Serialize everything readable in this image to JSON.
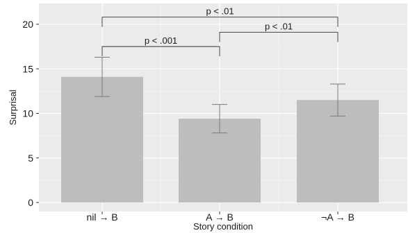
{
  "chart_data": {
    "type": "bar",
    "title": "",
    "xlabel": "Story condition",
    "ylabel": "Surprisal",
    "categories": [
      "nil → B",
      "A → B",
      "¬A → B"
    ],
    "values": [
      14.1,
      9.4,
      11.5
    ],
    "error_bars": [
      {
        "low": 11.9,
        "high": 16.3
      },
      {
        "low": 7.8,
        "high": 11.0
      },
      {
        "low": 9.7,
        "high": 13.3
      }
    ],
    "yticks": [
      0,
      5,
      10,
      15,
      20
    ],
    "ytick_labels": [
      "0",
      "5",
      "10",
      "15",
      "20"
    ],
    "ylim": [
      -0.6,
      21.8
    ],
    "grid": true,
    "colors": {
      "bar": "#bdbdbd",
      "panel": "#ebebeb",
      "grid_major": "#ffffff",
      "grid_minor": "#f4f4f4",
      "error_bar": "#7a7a7a",
      "bracket": "#333333"
    },
    "significance": [
      {
        "from": 0,
        "to": 1,
        "y": 17.5,
        "label": "p < .001"
      },
      {
        "from": 1,
        "to": 2,
        "y": 19.1,
        "label": "p < .01"
      },
      {
        "from": 0,
        "to": 2,
        "y": 20.8,
        "label": "p < .01"
      }
    ]
  }
}
